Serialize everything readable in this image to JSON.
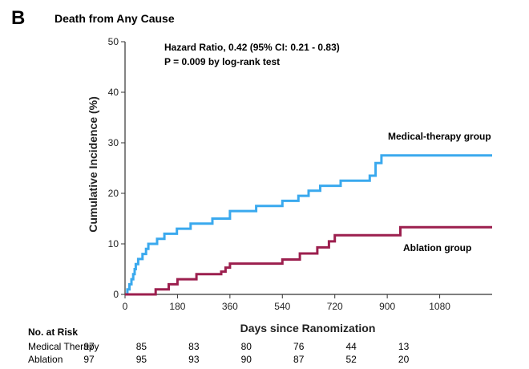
{
  "panel_letter": "B",
  "chart_data": {
    "type": "line",
    "step": true,
    "title": "Death from Any Cause",
    "xlabel": "Days since Ranomization",
    "ylabel": "Cumulative Incidence (%)",
    "xlim": [
      0,
      1260
    ],
    "ylim": [
      0,
      50
    ],
    "xticks": [
      0,
      180,
      360,
      540,
      720,
      900,
      1080
    ],
    "yticks": [
      0,
      10,
      20,
      30,
      40,
      50
    ],
    "annotation": {
      "line1": "Hazard Ratio, 0.42 (95% CI: 0.21 - 0.83)",
      "line2": "P = 0.009 by log-rank test"
    },
    "series": [
      {
        "name": "Medical-therapy group",
        "color": "#3aa9ee",
        "points": [
          [
            0,
            0
          ],
          [
            8,
            0
          ],
          [
            8,
            1
          ],
          [
            15,
            1
          ],
          [
            15,
            2
          ],
          [
            22,
            2
          ],
          [
            22,
            3
          ],
          [
            28,
            3
          ],
          [
            28,
            4
          ],
          [
            33,
            4
          ],
          [
            33,
            5
          ],
          [
            37,
            5
          ],
          [
            37,
            6
          ],
          [
            45,
            6
          ],
          [
            45,
            7
          ],
          [
            60,
            7
          ],
          [
            60,
            8
          ],
          [
            72,
            8
          ],
          [
            72,
            9
          ],
          [
            80,
            9
          ],
          [
            80,
            10
          ],
          [
            110,
            10
          ],
          [
            110,
            11
          ],
          [
            135,
            11
          ],
          [
            135,
            12
          ],
          [
            178,
            12
          ],
          [
            178,
            13
          ],
          [
            225,
            13
          ],
          [
            225,
            14
          ],
          [
            300,
            14
          ],
          [
            300,
            15
          ],
          [
            360,
            15
          ],
          [
            360,
            16.5
          ],
          [
            450,
            16.5
          ],
          [
            450,
            17.5
          ],
          [
            540,
            17.5
          ],
          [
            540,
            18.5
          ],
          [
            595,
            18.5
          ],
          [
            595,
            19.5
          ],
          [
            630,
            19.5
          ],
          [
            630,
            20.5
          ],
          [
            670,
            20.5
          ],
          [
            670,
            21.5
          ],
          [
            740,
            21.5
          ],
          [
            740,
            22.5
          ],
          [
            840,
            22.5
          ],
          [
            840,
            23.5
          ],
          [
            860,
            23.5
          ],
          [
            860,
            26
          ],
          [
            880,
            26
          ],
          [
            880,
            27.5
          ],
          [
            1260,
            27.5
          ]
        ]
      },
      {
        "name": "Ablation group",
        "color": "#9c1f4e",
        "points": [
          [
            0,
            0
          ],
          [
            105,
            0
          ],
          [
            105,
            1
          ],
          [
            150,
            1
          ],
          [
            150,
            2
          ],
          [
            180,
            2
          ],
          [
            180,
            3
          ],
          [
            245,
            3
          ],
          [
            245,
            4
          ],
          [
            330,
            4
          ],
          [
            330,
            4.5
          ],
          [
            345,
            4.5
          ],
          [
            345,
            5.3
          ],
          [
            360,
            5.3
          ],
          [
            360,
            6.1
          ],
          [
            540,
            6.1
          ],
          [
            540,
            6.9
          ],
          [
            600,
            6.9
          ],
          [
            600,
            8.1
          ],
          [
            660,
            8.1
          ],
          [
            660,
            9.3
          ],
          [
            700,
            9.3
          ],
          [
            700,
            10.5
          ],
          [
            720,
            10.5
          ],
          [
            720,
            11.7
          ],
          [
            945,
            11.7
          ],
          [
            945,
            13.3
          ],
          [
            1260,
            13.3
          ]
        ]
      }
    ]
  },
  "risk_table": {
    "heading": "No. at Risk",
    "rows": [
      {
        "label": "Medical Therapy",
        "values": [
          "97",
          "85",
          "83",
          "80",
          "76",
          "44",
          "13"
        ]
      },
      {
        "label": "Ablation",
        "values": [
          "97",
          "95",
          "93",
          "90",
          "87",
          "52",
          "20"
        ]
      }
    ]
  }
}
